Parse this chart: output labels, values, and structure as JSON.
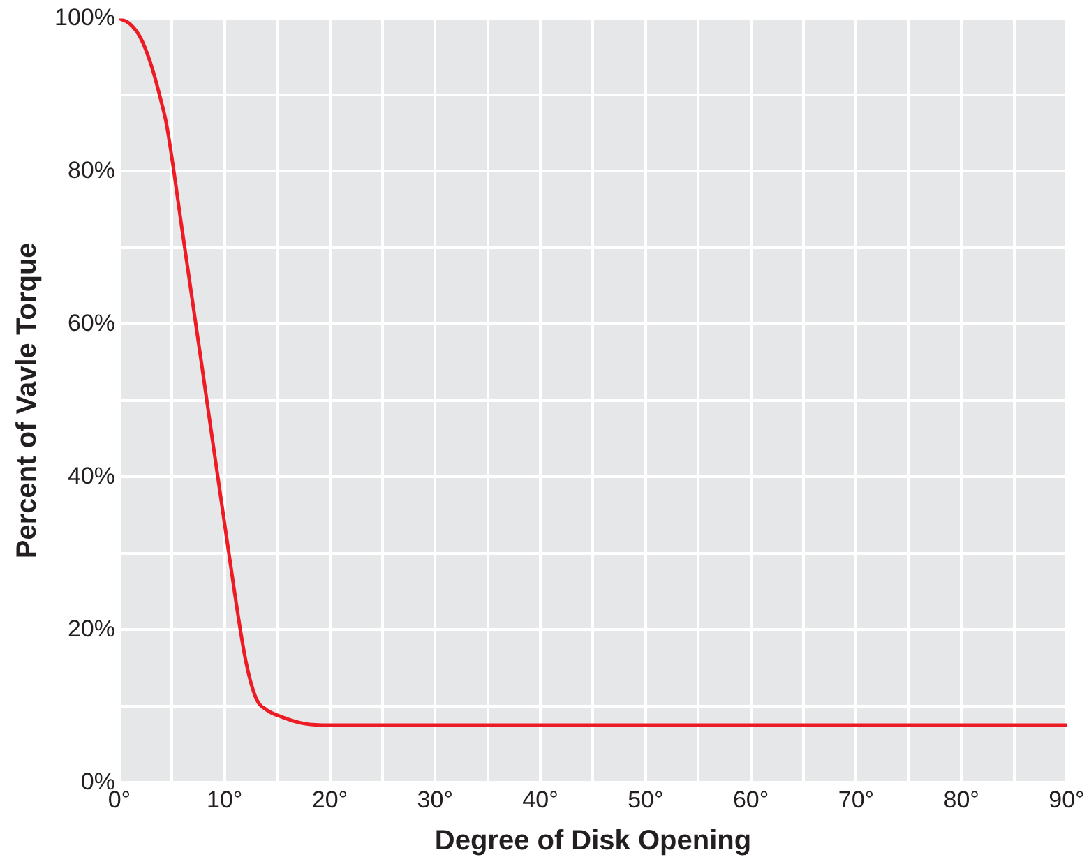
{
  "chart_data": {
    "type": "line",
    "xlabel": "Degree of Disk Opening",
    "ylabel": "Percent of Vavle Torque",
    "series": [
      {
        "color": "#ed1c24",
        "x": [
          0,
          1,
          2,
          3,
          4,
          4.5,
          6,
          8,
          10.3,
          12,
          13,
          14,
          15.4,
          17.6,
          20,
          30,
          40,
          50,
          60,
          70,
          80,
          90
        ],
        "values": [
          100,
          99.3,
          97.5,
          94,
          89,
          86,
          72,
          53,
          31,
          16,
          11,
          9.5,
          8.6,
          7.7,
          7.5,
          7.5,
          7.5,
          7.5,
          7.5,
          7.5,
          7.5,
          7.5
        ]
      }
    ],
    "xlim": [
      0,
      90
    ],
    "xticks": [
      {
        "value": 0,
        "label": "0°"
      },
      {
        "value": 5,
        "label": null
      },
      {
        "value": 10,
        "label": "10°"
      },
      {
        "value": 15,
        "label": null
      },
      {
        "value": 20,
        "label": "20°"
      },
      {
        "value": 25,
        "label": null
      },
      {
        "value": 30,
        "label": "30°"
      },
      {
        "value": 35,
        "label": null
      },
      {
        "value": 40,
        "label": "40°"
      },
      {
        "value": 45,
        "label": null
      },
      {
        "value": 50,
        "label": "50°"
      },
      {
        "value": 55,
        "label": null
      },
      {
        "value": 60,
        "label": "60°"
      },
      {
        "value": 65,
        "label": null
      },
      {
        "value": 70,
        "label": "70°"
      },
      {
        "value": 75,
        "label": null
      },
      {
        "value": 80,
        "label": "80°"
      },
      {
        "value": 85,
        "label": null
      },
      {
        "value": 90,
        "label": "90°"
      }
    ],
    "ylim": [
      0,
      100
    ],
    "yticks": [
      {
        "value": 0,
        "label": "0%"
      },
      {
        "value": 10,
        "label": null
      },
      {
        "value": 20,
        "label": "20%"
      },
      {
        "value": 30,
        "label": null
      },
      {
        "value": 40,
        "label": "40%"
      },
      {
        "value": 50,
        "label": null
      },
      {
        "value": 60,
        "label": "60%"
      },
      {
        "value": 70,
        "label": null
      },
      {
        "value": 80,
        "label": "80%"
      },
      {
        "value": 90,
        "label": null
      },
      {
        "value": 100,
        "label": "100%"
      }
    ],
    "grid": true,
    "legend": false,
    "marker": "none",
    "line_style": "solid"
  }
}
